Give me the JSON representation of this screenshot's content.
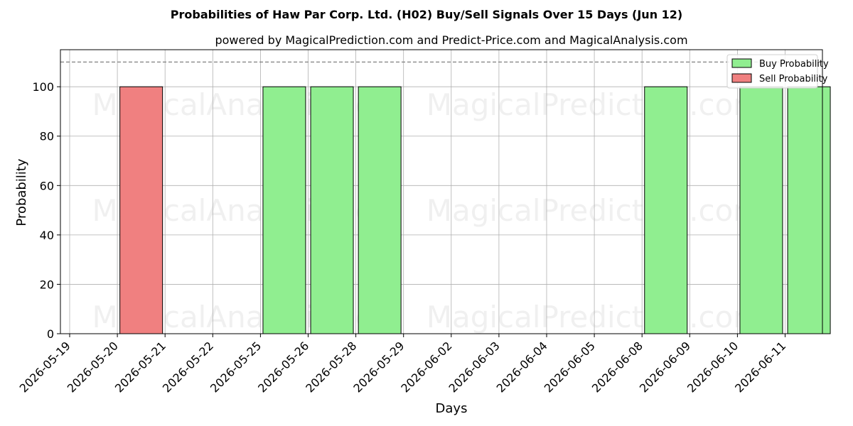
{
  "chart_data": {
    "type": "bar",
    "title": "Probabilities of Haw Par Corp. Ltd. (H02) Buy/Sell Signals Over 15 Days (Jun 12)",
    "subtitle": "powered by MagicalPrediction.com and Predict-Price.com and MagicalAnalysis.com",
    "xlabel": "Days",
    "ylabel": "Probability",
    "ylim": [
      0,
      115
    ],
    "yticks": [
      0,
      20,
      40,
      60,
      80,
      100
    ],
    "threshold": 110,
    "grid": true,
    "legend_position": "top-right",
    "categories": [
      "2026-05-19",
      "2026-05-20",
      "2026-05-21",
      "2026-05-22",
      "2026-05-25",
      "2026-05-26",
      "2026-05-28",
      "2026-05-29",
      "2026-06-02",
      "2026-06-03",
      "2026-06-04",
      "2026-06-05",
      "2026-06-08",
      "2026-06-09",
      "2026-06-10",
      "2026-06-11"
    ],
    "series": [
      {
        "name": "Buy Probability",
        "color": "#90ee90",
        "values": [
          0,
          0,
          0,
          0,
          100,
          100,
          100,
          0,
          0,
          0,
          0,
          0,
          100,
          0,
          100,
          100
        ]
      },
      {
        "name": "Sell Probability",
        "color": "#f08080",
        "values": [
          0,
          100,
          0,
          0,
          0,
          0,
          0,
          0,
          0,
          0,
          0,
          0,
          0,
          0,
          0,
          0
        ]
      }
    ],
    "watermarks": [
      "MagicalAnalysis.com",
      "MagicalPrediction.com"
    ]
  }
}
